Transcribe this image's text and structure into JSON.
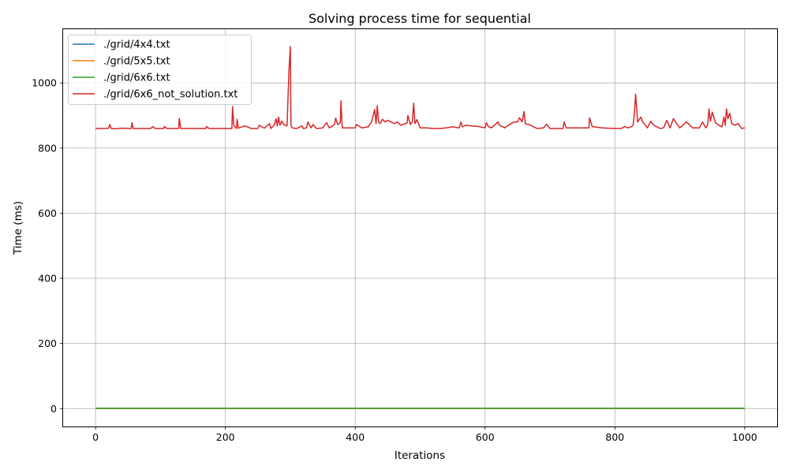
{
  "chart_data": {
    "type": "line",
    "title": "Solving process time for sequential",
    "xlabel": "Iterations",
    "ylabel": "Time (ms)",
    "xlim": [
      -50,
      1050
    ],
    "ylim": [
      -55,
      1165
    ],
    "xticks": [
      0,
      200,
      400,
      600,
      800,
      1000
    ],
    "yticks": [
      0,
      200,
      400,
      600,
      800,
      1000
    ],
    "grid": true,
    "legend_position": "top-left",
    "series": [
      {
        "name": "./grid/4x4.txt",
        "color": "#1f77b4",
        "x": [
          0,
          1000
        ],
        "y": [
          0.3,
          0.3
        ]
      },
      {
        "name": "./grid/5x5.txt",
        "color": "#ff7f0e",
        "x": [
          0,
          1000
        ],
        "y": [
          0.5,
          0.5
        ]
      },
      {
        "name": "./grid/6x6.txt",
        "color": "#2ca02c",
        "x": [
          0,
          1000
        ],
        "y": [
          1,
          1
        ]
      },
      {
        "name": "./grid/6x6_not_solution.txt",
        "color": "#d62728",
        "x": [
          0,
          10,
          20,
          22,
          24,
          30,
          40,
          55,
          56,
          58,
          70,
          85,
          88,
          92,
          105,
          106,
          110,
          128,
          129,
          131,
          150,
          170,
          171,
          175,
          190,
          200,
          210,
          211,
          213,
          217,
          218,
          220,
          230,
          240,
          250,
          252,
          260,
          268,
          270,
          275,
          278,
          280,
          282,
          284,
          287,
          290,
          295,
          298,
          300,
          301,
          303,
          310,
          318,
          320,
          325,
          327,
          332,
          335,
          340,
          350,
          356,
          360,
          368,
          370,
          373,
          377,
          378,
          380,
          390,
          400,
          402,
          410,
          420,
          425,
          430,
          432,
          434,
          436,
          438,
          442,
          446,
          450,
          455,
          460,
          465,
          470,
          480,
          481,
          485,
          488,
          490,
          492,
          495,
          500,
          510,
          520,
          530,
          540,
          550,
          560,
          563,
          565,
          570,
          580,
          590,
          600,
          602,
          605,
          610,
          620,
          622,
          625,
          630,
          640,
          645,
          650,
          653,
          657,
          660,
          662,
          670,
          680,
          690,
          695,
          700,
          720,
          722,
          725,
          740,
          760,
          761,
          765,
          780,
          800,
          810,
          815,
          820,
          825,
          828,
          830,
          832,
          835,
          840,
          843,
          850,
          855,
          860,
          870,
          875,
          880,
          885,
          890,
          900,
          910,
          920,
          930,
          935,
          940,
          943,
          945,
          947,
          950,
          955,
          960,
          965,
          968,
          970,
          972,
          974,
          977,
          980,
          985,
          990,
          995,
          1000
        ],
        "y": [
          860,
          860,
          861,
          872,
          860,
          859,
          861,
          860,
          878,
          860,
          860,
          860,
          866,
          860,
          860,
          866,
          860,
          860,
          891,
          860,
          860,
          860,
          866,
          860,
          860,
          860,
          860,
          927,
          870,
          860,
          888,
          861,
          868,
          860,
          860,
          870,
          861,
          875,
          860,
          870,
          890,
          868,
          895,
          870,
          883,
          872,
          868,
          1040,
          1112,
          870,
          862,
          860,
          868,
          860,
          862,
          880,
          862,
          872,
          860,
          862,
          878,
          862,
          872,
          892,
          872,
          878,
          945,
          862,
          862,
          862,
          872,
          862,
          865,
          880,
          918,
          875,
          930,
          880,
          875,
          888,
          880,
          885,
          880,
          875,
          880,
          870,
          877,
          900,
          872,
          880,
          938,
          875,
          887,
          862,
          862,
          860,
          860,
          862,
          865,
          862,
          880,
          865,
          870,
          868,
          866,
          862,
          878,
          866,
          862,
          880,
          870,
          868,
          862,
          875,
          880,
          880,
          893,
          880,
          912,
          875,
          870,
          860,
          862,
          873,
          860,
          860,
          880,
          862,
          862,
          862,
          893,
          866,
          862,
          860,
          860,
          866,
          862,
          865,
          870,
          905,
          965,
          880,
          895,
          880,
          862,
          882,
          870,
          860,
          862,
          885,
          862,
          890,
          862,
          880,
          862,
          862,
          880,
          862,
          872,
          920,
          882,
          910,
          878,
          870,
          865,
          895,
          870,
          920,
          890,
          907,
          875,
          870,
          875,
          860,
          862
        ]
      }
    ]
  }
}
